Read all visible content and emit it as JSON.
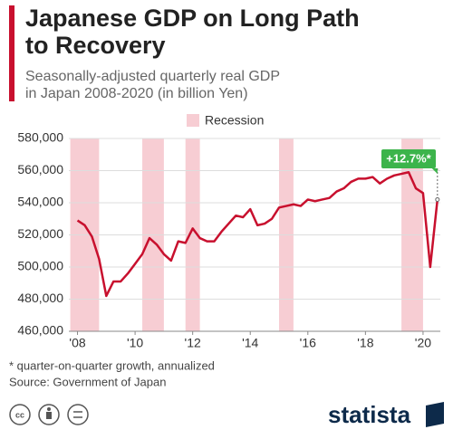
{
  "chart_data": {
    "type": "line",
    "title": "Japanese GDP on Long Path to Recovery",
    "title_lines": [
      "Japanese GDP on Long Path",
      "to Recovery"
    ],
    "subtitle_lines": [
      "Seasonally-adjusted quarterly real GDP",
      "in Japan 2008-2020 (in billion Yen)"
    ],
    "legend": "Recession",
    "recession_color": "#f7cdd3",
    "recessions": [
      [
        2007.75,
        2008.75
      ],
      [
        2010.25,
        2011.0
      ],
      [
        2011.75,
        2012.25
      ],
      [
        2015.0,
        2015.5
      ],
      [
        2019.25,
        2020.0
      ]
    ],
    "annotation": "+12.7%*",
    "annotation_color": "#3cb44b",
    "color": "#c8102e",
    "x": [
      2008,
      2008.25,
      2008.5,
      2008.75,
      2009,
      2009.25,
      2009.5,
      2009.75,
      2010,
      2010.25,
      2010.5,
      2010.75,
      2011,
      2011.25,
      2011.5,
      2011.75,
      2012,
      2012.25,
      2012.5,
      2012.75,
      2013,
      2013.25,
      2013.5,
      2013.75,
      2014,
      2014.25,
      2014.5,
      2014.75,
      2015,
      2015.25,
      2015.5,
      2015.75,
      2016,
      2016.25,
      2016.5,
      2016.75,
      2017,
      2017.25,
      2017.5,
      2017.75,
      2018,
      2018.25,
      2018.5,
      2018.75,
      2019,
      2019.25,
      2019.5,
      2019.75,
      2020,
      2020.25,
      2020.5
    ],
    "values": [
      529000,
      526000,
      519000,
      505000,
      482000,
      491000,
      491000,
      496000,
      502000,
      508000,
      518000,
      514000,
      508000,
      504000,
      516000,
      515000,
      524000,
      518000,
      516000,
      516000,
      522000,
      527000,
      532000,
      531000,
      536000,
      526000,
      527000,
      530000,
      537000,
      538000,
      539000,
      538000,
      542000,
      541000,
      542000,
      543000,
      547000,
      549000,
      553000,
      555000,
      555000,
      556000,
      552000,
      555000,
      557000,
      558000,
      559000,
      549000,
      546000,
      500000,
      542000
    ],
    "xlim": [
      2007.7,
      2020.6
    ],
    "xticks": [
      {
        "value": 2008,
        "label": "'08"
      },
      {
        "value": 2010,
        "label": "'10"
      },
      {
        "value": 2012,
        "label": "'12"
      },
      {
        "value": 2014,
        "label": "'14"
      },
      {
        "value": 2016,
        "label": "'16"
      },
      {
        "value": 2018,
        "label": "'18"
      },
      {
        "value": 2020,
        "label": "'20"
      }
    ],
    "ylim": [
      460000,
      580000
    ],
    "yticks": [
      {
        "value": 460000,
        "label": "460,000"
      },
      {
        "value": 480000,
        "label": "480,000"
      },
      {
        "value": 500000,
        "label": "500,000"
      },
      {
        "value": 520000,
        "label": "520,000"
      },
      {
        "value": 540000,
        "label": "540,000"
      },
      {
        "value": 560000,
        "label": "560,000"
      },
      {
        "value": 580000,
        "label": "580,000"
      }
    ],
    "grid": true,
    "footnote": "* quarter-on-quarter growth, annualized",
    "source": "Source: Government of Japan",
    "brand": "statista"
  }
}
